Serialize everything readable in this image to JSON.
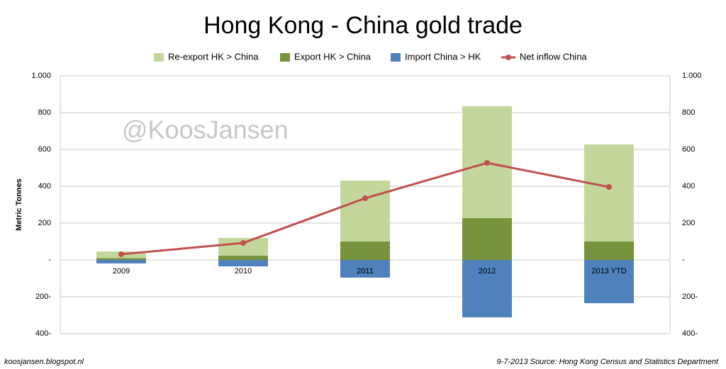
{
  "chart_data": {
    "type": "bar",
    "title": "Hong Kong - China gold trade",
    "y_label": "Metric Tonnes",
    "annotations": [
      "@KoosJansen"
    ],
    "footer_left": "koosjansen.blogspot.nl",
    "footer_right": "9-7-2013 Source: Hong Kong Census and Statistics Department",
    "categories": [
      "2009",
      "2010",
      "2011",
      "2012",
      "2013 YTD"
    ],
    "series": [
      {
        "name": "Re-export HK > China",
        "color": "#c3d69b",
        "values": [
          36,
          96,
          331,
          608,
          527
        ]
      },
      {
        "name": "Export HK > China",
        "color": "#77933c",
        "values": [
          10,
          23,
          100,
          227,
          100
        ]
      },
      {
        "name": "Import China > HK",
        "color": "#4f81bd",
        "values": [
          -19,
          -35,
          -96,
          -312,
          -235
        ]
      },
      {
        "name": "Net inflow China",
        "color": "#c0504d",
        "type": "line",
        "axis": "y2",
        "values": [
          31,
          92,
          335,
          527,
          396
        ]
      }
    ],
    "ylim": [
      -400,
      1000
    ],
    "yticks": [
      {
        "value": -400,
        "label": "400-"
      },
      {
        "value": -200,
        "label": "200-"
      },
      {
        "value": 0,
        "label": "-"
      },
      200,
      400,
      600,
      800,
      {
        "value": 1000,
        "label": "1.000"
      }
    ],
    "y2lim": [
      -400,
      1000
    ],
    "y2ticks": [
      {
        "value": -400,
        "label": "400-"
      },
      {
        "value": -200,
        "label": "200-"
      },
      {
        "value": 0,
        "label": "-"
      },
      200,
      400,
      600,
      800,
      {
        "value": 1000,
        "label": "1.000"
      }
    ],
    "grid": true,
    "legend": "top"
  }
}
